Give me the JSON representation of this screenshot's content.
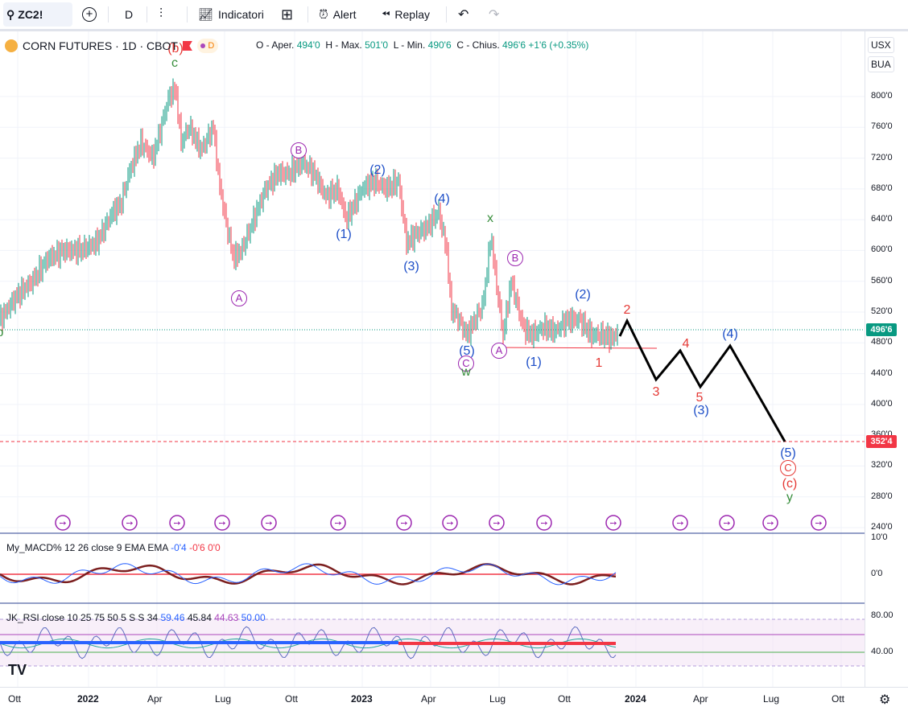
{
  "toolbar": {
    "symbol": "ZC2!",
    "interval": "D",
    "indicators_label": "Indicatori",
    "alert_label": "Alert",
    "replay_label": "Replay"
  },
  "legend": {
    "title": "CORN FUTURES · 1D · CBOT",
    "badge": "D",
    "open_label": "O - Aper.",
    "open": "494'0",
    "high_label": "H - Max.",
    "high": "501'0",
    "low_label": "L - Min.",
    "low": "490'6",
    "close_label": "C - Chius.",
    "close": "496'6",
    "change": "+1'6 (+0.35%)"
  },
  "axis": {
    "currency": "USX",
    "unit": "BUA",
    "price_labels": [
      "800'0",
      "760'0",
      "720'0",
      "680'0",
      "640'0",
      "600'0",
      "560'0",
      "520'0",
      "480'0",
      "440'0",
      "400'0",
      "360'0",
      "320'0",
      "280'0",
      "240'0"
    ],
    "last_price_tag": "496'6",
    "target_tag": "352'4",
    "macd_labels": [
      "10'0",
      "0'0"
    ],
    "rsi_labels": [
      "80.00",
      "40.00"
    ],
    "time_labels": [
      "Ott",
      "2022",
      "Apr",
      "Lug",
      "Ott",
      "2023",
      "Apr",
      "Lug",
      "Ott",
      "2024",
      "Apr",
      "Lug",
      "Ott"
    ]
  },
  "macd": {
    "name": "My_MACD% 12 26 close 9 EMA EMA",
    "v1": "-0'4",
    "v2": "-0'6",
    "v3": "0'0"
  },
  "rsi": {
    "name": "JK_RSI close 10 25 75 50 5 S S 34",
    "v1": "59.46",
    "v2": "45.84",
    "v3": "44.63",
    "v4": "50.00"
  },
  "waves": {
    "b_left": "b",
    "b_paren": "(b)",
    "c_top": "c",
    "A1": "A",
    "B1": "B",
    "w2": "(2)",
    "w1": "(1)",
    "w3": "(3)",
    "w4": "(4)",
    "w5": "(5)",
    "C1": "C",
    "w": "w",
    "x": "x",
    "A2": "A",
    "B2": "B",
    "v1": "(1)",
    "v2": "(2)",
    "r1": "1",
    "r2": "2",
    "r3": "3",
    "r4": "4",
    "r5": "5",
    "p3": "(3)",
    "p4": "(4)",
    "p5": "(5)",
    "C2": "C",
    "cparen": "(c)",
    "y": "y"
  },
  "colors": {
    "purple": "#9c27b0",
    "blue": "#1e4fc8",
    "red": "#e53935",
    "green": "#388e3c",
    "up": "#089981",
    "down": "#f23645"
  }
}
